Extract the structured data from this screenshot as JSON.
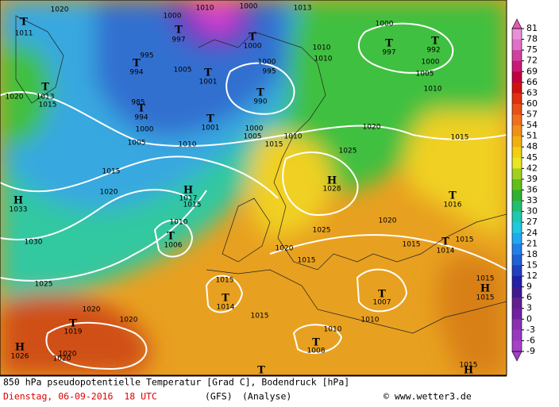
{
  "map": {
    "labels": [
      "T",
      "1011",
      "1020",
      "1010",
      "1000",
      "T",
      "997",
      "995",
      "T",
      "994",
      "1005",
      "T",
      "1001",
      "1000",
      "T",
      "1000",
      "1013",
      "1010",
      "1010",
      "1000",
      "995",
      "T",
      "990",
      "1000",
      "T",
      "997",
      "T",
      "992",
      "1000",
      "1005",
      "1010",
      "1020",
      "T",
      "1013",
      "1015",
      "985",
      "T",
      "994",
      "1000",
      "1005",
      "T",
      "1001",
      "1000",
      "1005",
      "1010",
      "1015",
      "1010",
      "1020",
      "1015",
      "1025",
      "1015",
      "1020",
      "H",
      "1017",
      "1015",
      "H",
      "1028",
      "T",
      "1016",
      "H",
      "1033",
      "1010",
      "T",
      "1006",
      "1020",
      "1025",
      "1030",
      "1020",
      "1015",
      "T",
      "1014",
      "1015",
      "1015",
      "1025",
      "1015",
      "T",
      "1014",
      "T",
      "1007",
      "1015",
      "H",
      "1015",
      "1020",
      "1020",
      "T",
      "1019",
      "1015",
      "1010",
      "1010",
      "T",
      "1008",
      "H",
      "1026",
      "1020",
      "1020",
      "T",
      "1015",
      "H"
    ]
  },
  "colorbar": {
    "labels": [
      81,
      78,
      75,
      72,
      69,
      66,
      63,
      60,
      57,
      54,
      51,
      48,
      45,
      42,
      39,
      36,
      33,
      30,
      27,
      24,
      21,
      18,
      15,
      12,
      9,
      6,
      3,
      0,
      -3,
      -6,
      -9
    ]
  },
  "footer": {
    "description": "850 hPa pseudopotentielle Temperatur [Grad C], Bodendruck [hPa]",
    "date": "Dienstag, 06-09-2016  18 UTC",
    "model": "(GFS)",
    "run": "(Analyse)",
    "credit": "© www.wetter3.de"
  }
}
